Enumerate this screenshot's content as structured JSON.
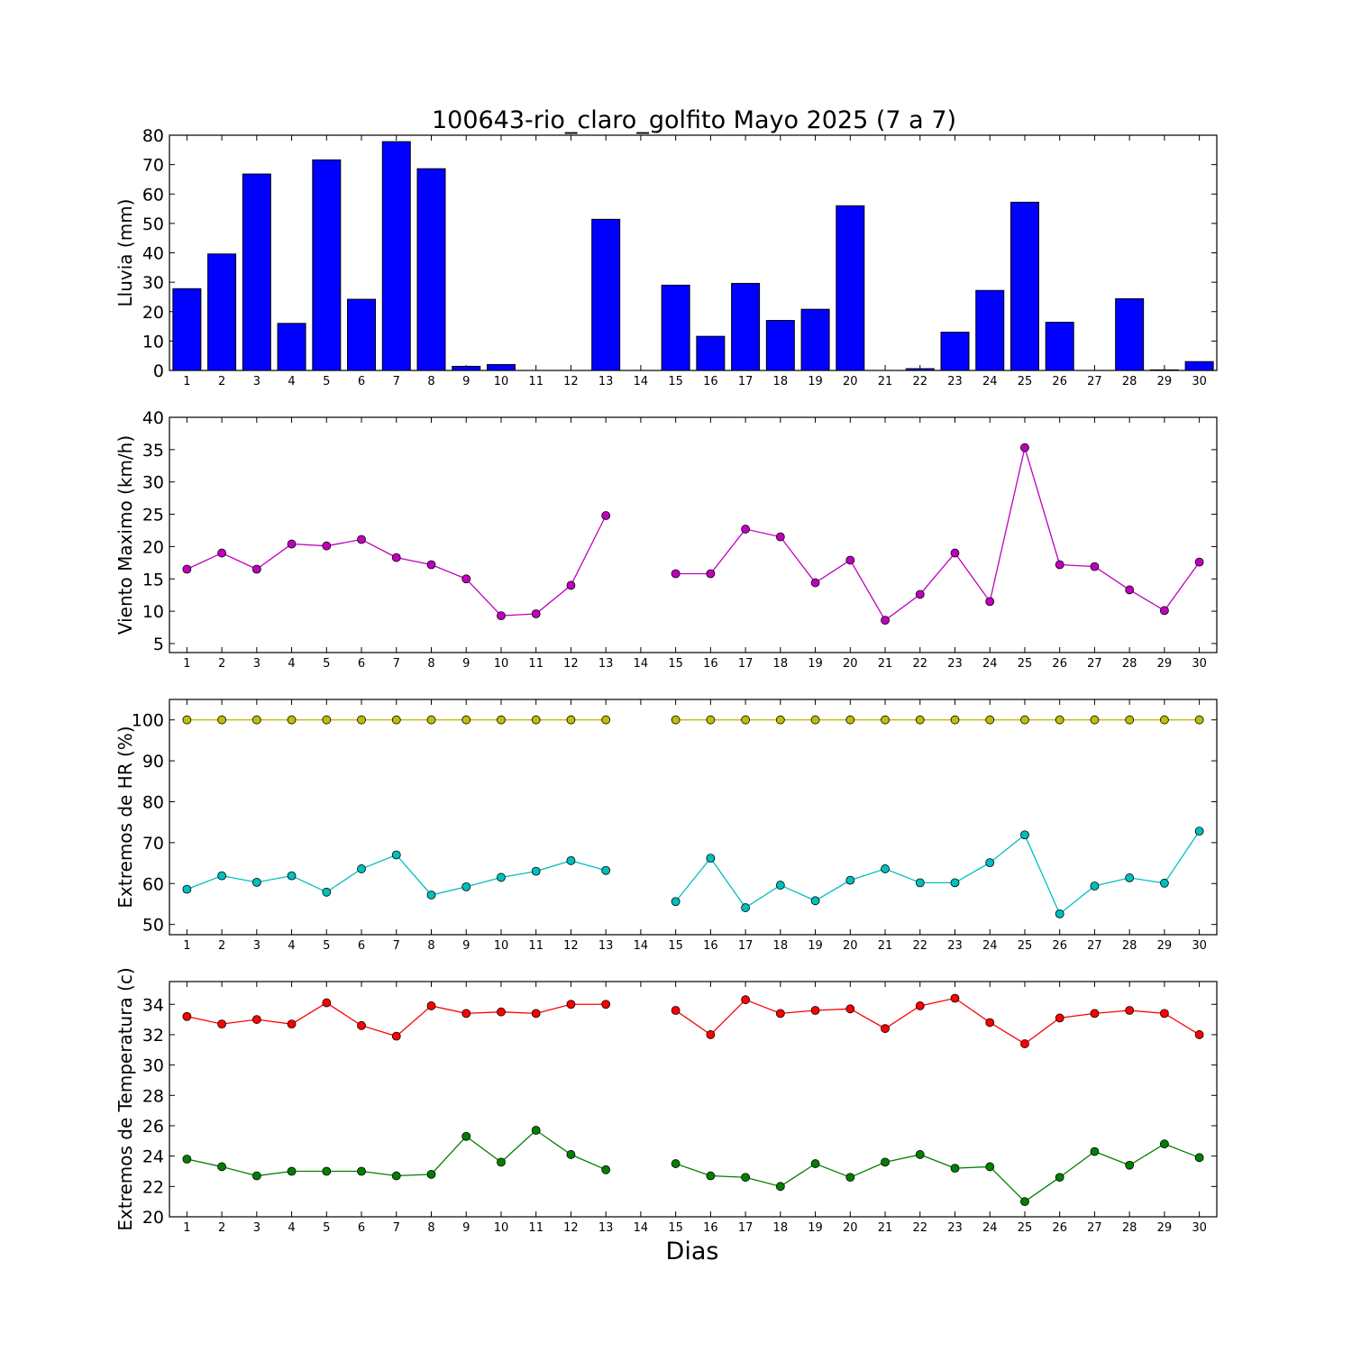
{
  "title": "100643-rio_claro_golfito Mayo 2025  (7 a 7)",
  "xlabel": "Dias",
  "chart_data": [
    {
      "type": "bar",
      "ylabel": "Lluvia (mm)",
      "ylim": [
        0,
        80
      ],
      "yticks": [
        0,
        10,
        20,
        30,
        40,
        50,
        60,
        70,
        80
      ],
      "x": [
        1,
        2,
        3,
        4,
        5,
        6,
        7,
        8,
        9,
        10,
        11,
        12,
        13,
        14,
        15,
        16,
        17,
        18,
        19,
        20,
        21,
        22,
        23,
        24,
        25,
        26,
        27,
        28,
        29,
        30
      ],
      "xticks": [
        1,
        2,
        3,
        4,
        5,
        6,
        7,
        8,
        9,
        10,
        11,
        12,
        13,
        14,
        15,
        16,
        17,
        18,
        19,
        20,
        21,
        22,
        23,
        24,
        25,
        26,
        27,
        28,
        29,
        30
      ],
      "series": [
        {
          "color": "#0000ff",
          "values": [
            27.8,
            39.6,
            66.8,
            16.0,
            71.6,
            24.2,
            77.8,
            68.6,
            1.4,
            2.0,
            0.0,
            0.0,
            51.4,
            0.0,
            29.0,
            11.6,
            29.6,
            17.0,
            20.8,
            56.0,
            0.0,
            0.6,
            13.0,
            27.2,
            57.2,
            16.4,
            0.0,
            24.4,
            0.2,
            3.0
          ]
        }
      ]
    },
    {
      "type": "line",
      "ylabel": "Viento Maximo (km/h)",
      "ylim": [
        3.6,
        40
      ],
      "yticks": [
        5,
        10,
        15,
        20,
        25,
        30,
        35,
        40
      ],
      "x": [
        1,
        2,
        3,
        4,
        5,
        6,
        7,
        8,
        9,
        10,
        11,
        12,
        13,
        14,
        15,
        16,
        17,
        18,
        19,
        20,
        21,
        22,
        23,
        24,
        25,
        26,
        27,
        28,
        29,
        30
      ],
      "xticks": [
        1,
        2,
        3,
        4,
        5,
        6,
        7,
        8,
        9,
        10,
        11,
        12,
        13,
        14,
        15,
        16,
        17,
        18,
        19,
        20,
        21,
        22,
        23,
        24,
        25,
        26,
        27,
        28,
        29,
        30
      ],
      "series": [
        {
          "color": "#bf00bf",
          "values": [
            16.5,
            19.0,
            16.5,
            20.4,
            20.1,
            21.1,
            18.3,
            17.2,
            15.0,
            9.3,
            9.6,
            14.0,
            24.8,
            null,
            15.8,
            15.8,
            22.7,
            21.5,
            14.4,
            17.9,
            8.6,
            12.6,
            19.0,
            11.5,
            35.3,
            17.2,
            16.9,
            13.3,
            10.1,
            17.6
          ]
        }
      ]
    },
    {
      "type": "line",
      "ylabel": "Extremos de HR (%)",
      "ylim": [
        47.5,
        105
      ],
      "yticks": [
        50,
        60,
        70,
        80,
        90,
        100
      ],
      "x": [
        1,
        2,
        3,
        4,
        5,
        6,
        7,
        8,
        9,
        10,
        11,
        12,
        13,
        14,
        15,
        16,
        17,
        18,
        19,
        20,
        21,
        22,
        23,
        24,
        25,
        26,
        27,
        28,
        29,
        30
      ],
      "xticks": [
        1,
        2,
        3,
        4,
        5,
        6,
        7,
        8,
        9,
        10,
        11,
        12,
        13,
        14,
        15,
        16,
        17,
        18,
        19,
        20,
        21,
        22,
        23,
        24,
        25,
        26,
        27,
        28,
        29,
        30
      ],
      "series": [
        {
          "color": "#bfbf00",
          "values": [
            100,
            100,
            100,
            100,
            100,
            100,
            100,
            100,
            100,
            100,
            100,
            100,
            100,
            null,
            100,
            100,
            100,
            100,
            100,
            100,
            100,
            100,
            100,
            100,
            100,
            100,
            100,
            100,
            100,
            100
          ]
        },
        {
          "color": "#00bfbf",
          "values": [
            58.6,
            61.9,
            60.3,
            61.9,
            57.9,
            63.6,
            67.0,
            57.2,
            59.2,
            61.5,
            63.0,
            65.6,
            63.2,
            null,
            55.6,
            66.2,
            54.1,
            59.6,
            55.8,
            60.8,
            63.6,
            60.2,
            60.2,
            65.1,
            71.9,
            52.6,
            59.4,
            61.4,
            60.1,
            72.8
          ]
        }
      ]
    },
    {
      "type": "line",
      "ylabel": "Extremos de Temperatura (c)",
      "ylim": [
        20,
        35.5
      ],
      "yticks": [
        20,
        22,
        24,
        26,
        28,
        30,
        32,
        34
      ],
      "x": [
        1,
        2,
        3,
        4,
        5,
        6,
        7,
        8,
        9,
        10,
        11,
        12,
        13,
        14,
        15,
        16,
        17,
        18,
        19,
        20,
        21,
        22,
        23,
        24,
        25,
        26,
        27,
        28,
        29,
        30
      ],
      "xticks": [
        1,
        2,
        3,
        4,
        5,
        6,
        7,
        8,
        9,
        10,
        11,
        12,
        13,
        14,
        15,
        16,
        17,
        18,
        19,
        20,
        21,
        22,
        23,
        24,
        25,
        26,
        27,
        28,
        29,
        30
      ],
      "series": [
        {
          "color": "#ff0000",
          "values": [
            33.2,
            32.7,
            33.0,
            32.7,
            34.1,
            32.6,
            31.9,
            33.9,
            33.4,
            33.5,
            33.4,
            34.0,
            34.0,
            null,
            33.6,
            32.0,
            34.3,
            33.4,
            33.6,
            33.7,
            32.4,
            33.9,
            34.4,
            32.8,
            31.4,
            33.1,
            33.4,
            33.6,
            33.4,
            32.0
          ]
        },
        {
          "color": "#008000",
          "values": [
            23.8,
            23.3,
            22.7,
            23.0,
            23.0,
            23.0,
            22.7,
            22.8,
            25.3,
            23.6,
            25.7,
            24.1,
            23.1,
            null,
            23.5,
            22.7,
            22.6,
            22.0,
            23.5,
            22.6,
            23.6,
            24.1,
            23.2,
            23.3,
            21.0,
            22.6,
            24.3,
            23.4,
            24.8,
            23.9
          ]
        }
      ]
    }
  ]
}
